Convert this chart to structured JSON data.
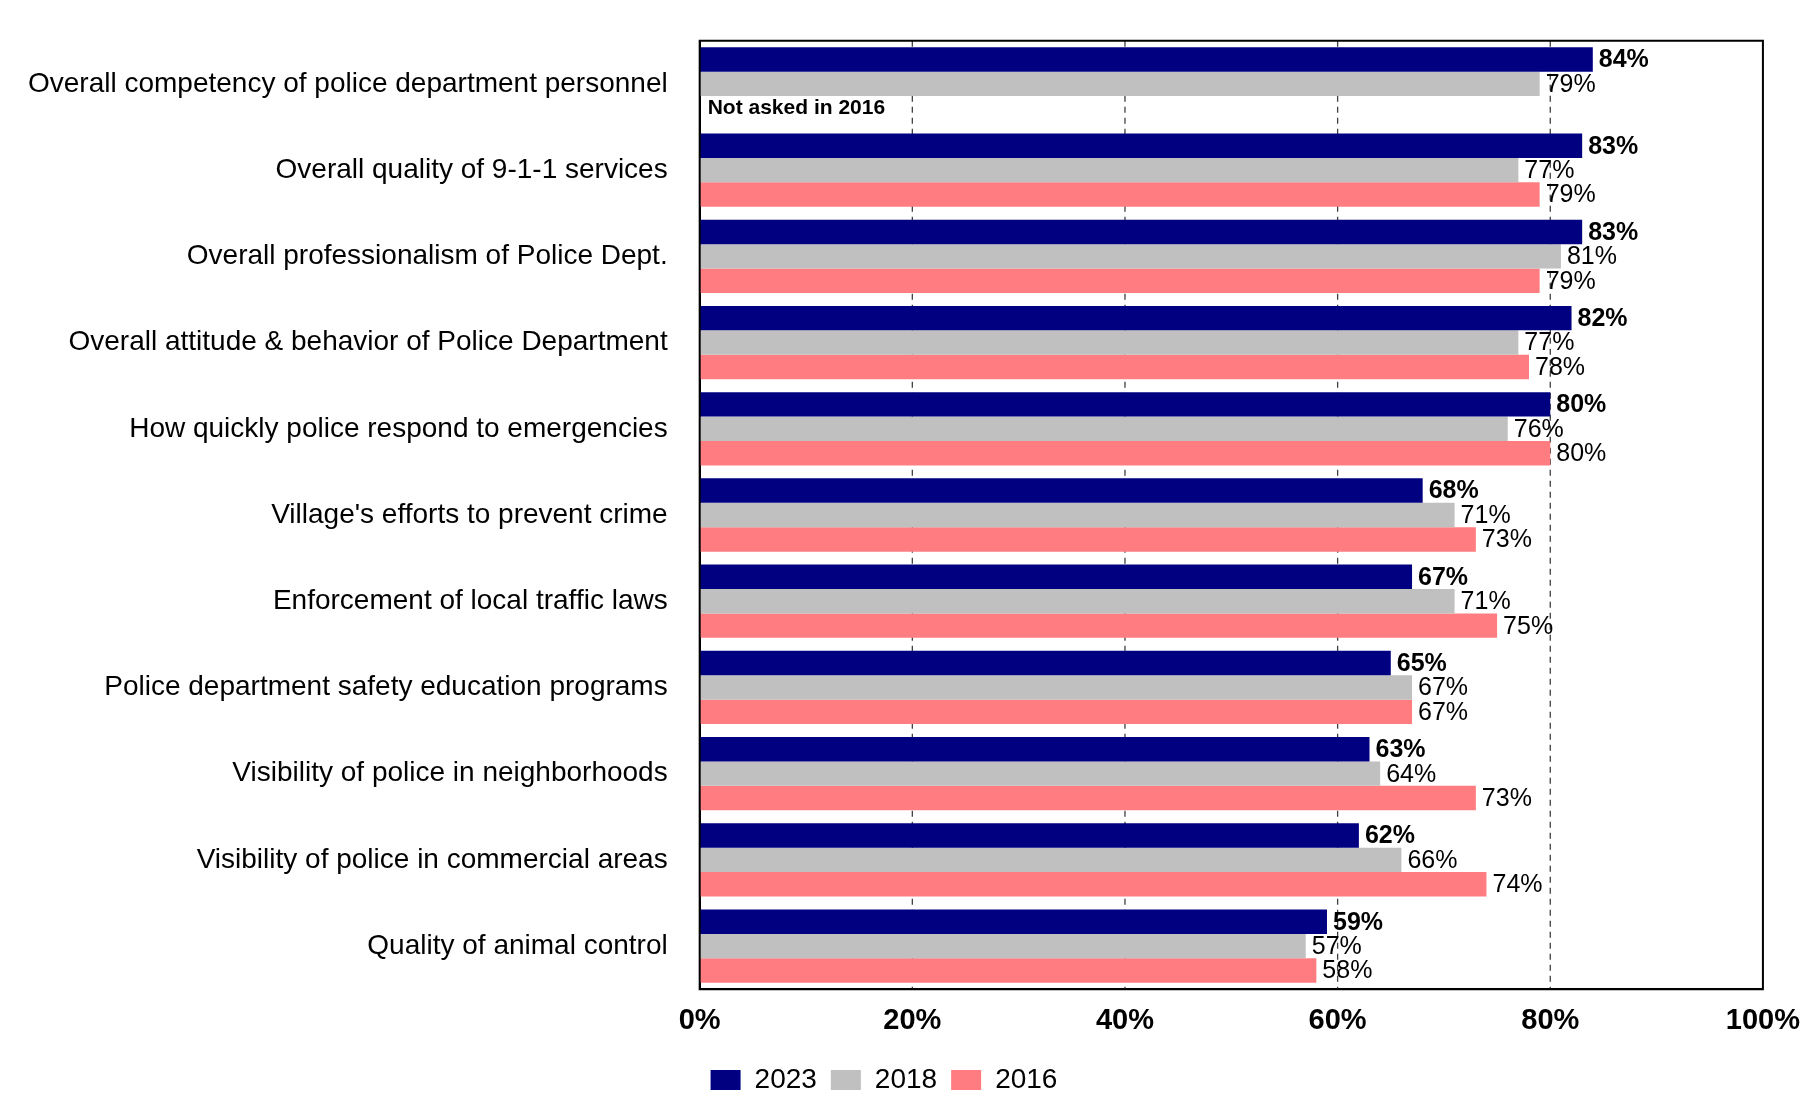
{
  "chart_data": {
    "type": "bar",
    "orientation": "horizontal",
    "categories": [
      "Overall competency of police department personnel",
      "Overall quality of 9-1-1 services",
      "Overall professionalism of Police Dept.",
      "Overall attitude & behavior of Police Department",
      "How quickly police respond to emergencies",
      "Village's efforts to prevent crime",
      "Enforcement of local traffic laws",
      "Police department safety education programs",
      "Visibility of police in neighborhoods",
      "Visibility of police in commercial areas",
      "Quality of animal control"
    ],
    "series": [
      {
        "name": "2023",
        "color": "#000080",
        "values": [
          84,
          83,
          83,
          82,
          80,
          68,
          67,
          65,
          63,
          62,
          59
        ],
        "value_labels": [
          "84%",
          "83%",
          "83%",
          "82%",
          "80%",
          "68%",
          "67%",
          "65%",
          "63%",
          "62%",
          "59%"
        ]
      },
      {
        "name": "2018",
        "color": "#c0c0c0",
        "values": [
          79,
          77,
          81,
          77,
          76,
          71,
          71,
          67,
          64,
          66,
          57
        ],
        "value_labels": [
          "79%",
          "77%",
          "81%",
          "77%",
          "76%",
          "71%",
          "71%",
          "67%",
          "64%",
          "66%",
          "57%"
        ]
      },
      {
        "name": "2016",
        "color": "#ff7c80",
        "values": [
          null,
          79,
          79,
          78,
          80,
          73,
          75,
          67,
          73,
          74,
          58
        ],
        "value_labels": [
          null,
          "79%",
          "79%",
          "78%",
          "80%",
          "73%",
          "75%",
          "67%",
          "73%",
          "74%",
          "58%"
        ]
      }
    ],
    "xlim": [
      0,
      100
    ],
    "xticks": [
      {
        "value": 0,
        "label": "0%"
      },
      {
        "value": 20,
        "label": "20%"
      },
      {
        "value": 40,
        "label": "40%"
      },
      {
        "value": 60,
        "label": "60%"
      },
      {
        "value": 80,
        "label": "80%"
      },
      {
        "value": 100,
        "label": "100%"
      }
    ],
    "line_style": "dashed",
    "annotations": [
      {
        "text": "Not asked in 2016",
        "x": 0,
        "y": "Overall competency of police department personnel"
      }
    ],
    "grid": "x",
    "legend": "bottom"
  }
}
